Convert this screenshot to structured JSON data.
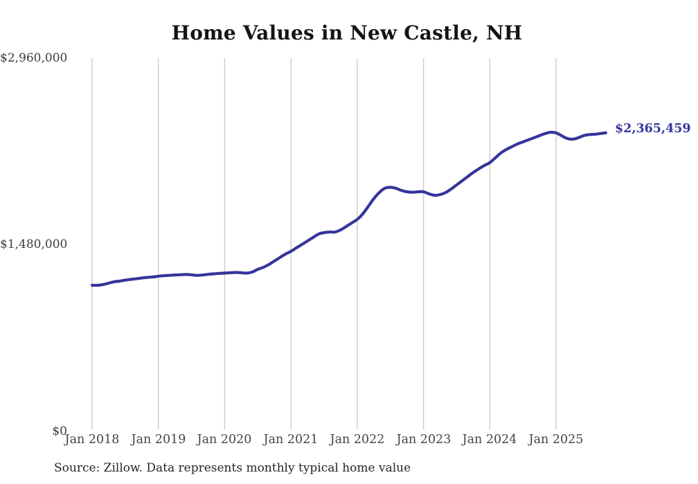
{
  "title": "Home Values in New Castle, NH",
  "source_note": "Source: Zillow. Data represents monthly typical home value",
  "end_label": "$2,365,459",
  "colors": {
    "line": "#35359b",
    "grid": "#cacaca",
    "title_text": "#141414",
    "axis_text": "#3b3b3b",
    "end_label_text": "#35359b",
    "background": "#ffffff"
  },
  "y_axis": {
    "tick_labels": [
      "$2,960,000",
      "$1,480,000",
      "$0"
    ],
    "tick_values": [
      2960000,
      1480000,
      0
    ]
  },
  "x_axis": {
    "tick_labels": [
      "Jan 2018",
      "Jan 2019",
      "Jan 2020",
      "Jan 2021",
      "Jan 2022",
      "Jan 2023",
      "Jan 2024",
      "Jan 2025"
    ]
  },
  "chart_data": {
    "type": "line",
    "title": "Home Values in New Castle, NH",
    "xlabel": "",
    "ylabel": "",
    "x_start": "2018-01",
    "x_end": "2025-10",
    "frequency": "monthly",
    "ylim": [
      0,
      2960000
    ],
    "y_tick_values": [
      0,
      1480000,
      2960000
    ],
    "x_tick_labels": [
      "Jan 2018",
      "Jan 2019",
      "Jan 2020",
      "Jan 2021",
      "Jan 2022",
      "Jan 2023",
      "Jan 2024",
      "Jan 2025"
    ],
    "grid": "vertical-only",
    "legend": "none",
    "final_value": 2365459,
    "final_value_label": "$2,365,459",
    "series": [
      {
        "name": "Typical home value",
        "values": [
          1152000,
          1152000,
          1158000,
          1169000,
          1180000,
          1185000,
          1193000,
          1199000,
          1204000,
          1210000,
          1215000,
          1218000,
          1224000,
          1228000,
          1231000,
          1234000,
          1236000,
          1238000,
          1235000,
          1231000,
          1234000,
          1239000,
          1243000,
          1247000,
          1249000,
          1252000,
          1254000,
          1252000,
          1249000,
          1258000,
          1279000,
          1295000,
          1317000,
          1345000,
          1373000,
          1400000,
          1422000,
          1450000,
          1477000,
          1505000,
          1532000,
          1560000,
          1571000,
          1576000,
          1576000,
          1593000,
          1620000,
          1648000,
          1676000,
          1720000,
          1780000,
          1841000,
          1890000,
          1924000,
          1932000,
          1924000,
          1907000,
          1896000,
          1893000,
          1896000,
          1896000,
          1880000,
          1868000,
          1874000,
          1890000,
          1918000,
          1951000,
          1984000,
          2017000,
          2050000,
          2078000,
          2105000,
          2128000,
          2166000,
          2205000,
          2233000,
          2255000,
          2277000,
          2293000,
          2310000,
          2326000,
          2343000,
          2359000,
          2370000,
          2365000,
          2343000,
          2321000,
          2315000,
          2326000,
          2343000,
          2352000,
          2354000,
          2360000,
          2365459
        ]
      }
    ]
  }
}
